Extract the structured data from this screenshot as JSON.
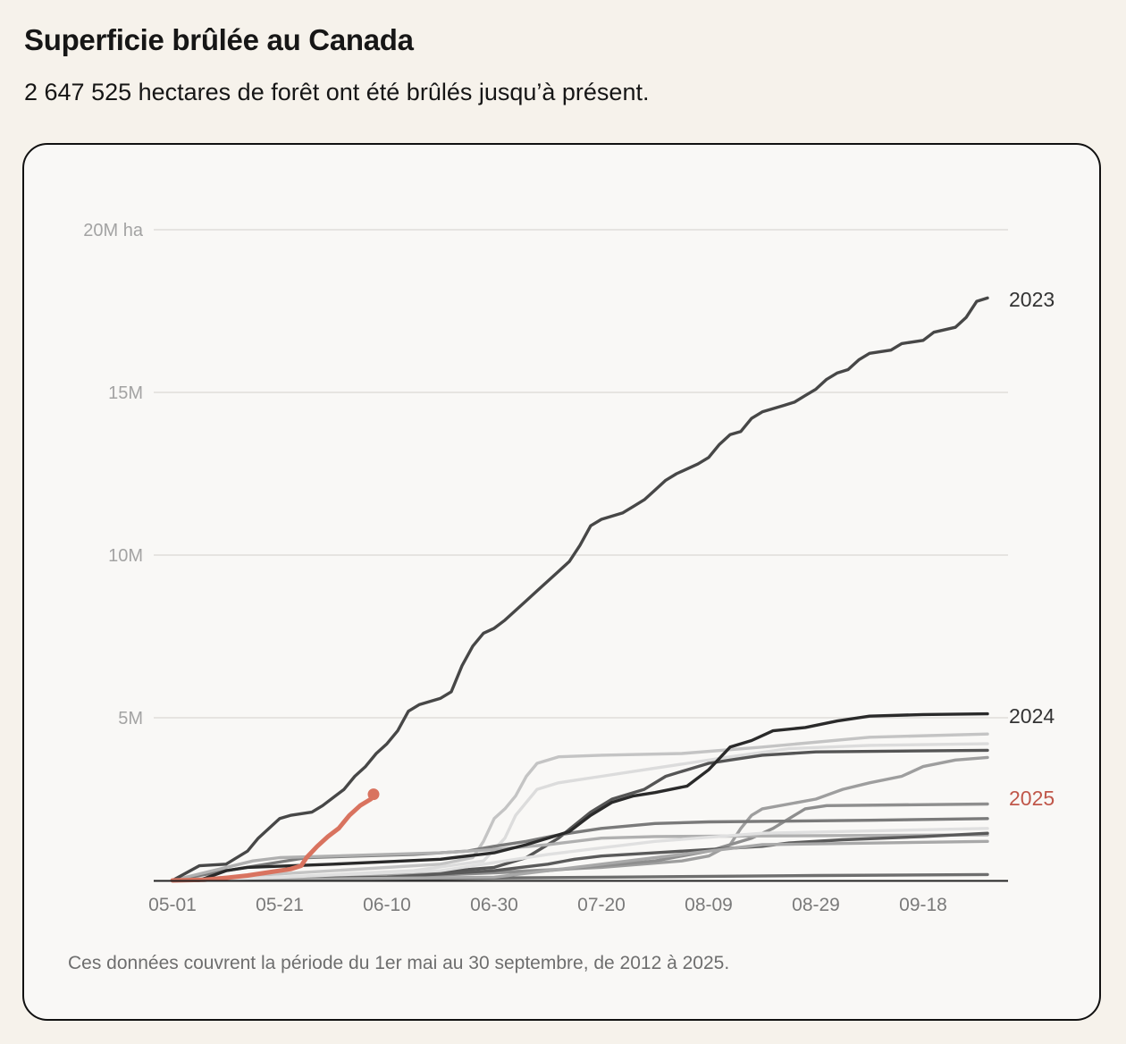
{
  "header": {
    "title": "Superficie brûlée au Canada",
    "subtitle": "2 647 525 hectares de forêt ont été brûlés jusqu’à présent."
  },
  "footer": {
    "note": "Ces données couvrent la période du 1er mai au 30 septembre, de 2012 à 2025."
  },
  "colors": {
    "background": "#f6f2eb",
    "card": "#f9f8f6",
    "highlight_2025": "#d9735f",
    "label_2025": "#c0574a",
    "label_dark": "#333333",
    "grid": "#e6e4e1",
    "axis": "#222222"
  },
  "chart_data": {
    "type": "line",
    "title": "Superficie brûlée au Canada",
    "xlabel": "",
    "ylabel": "ha",
    "x_unit": "days since May 1",
    "x_range": [
      0,
      152
    ],
    "ylim": [
      0,
      20
    ],
    "y_unit": "millions of hectares",
    "grid": true,
    "y_ticks": [
      {
        "value": 5,
        "label": "5M"
      },
      {
        "value": 10,
        "label": "10M"
      },
      {
        "value": 15,
        "label": "15M"
      },
      {
        "value": 20,
        "label": "20M ha"
      }
    ],
    "x_ticks": [
      {
        "value": 0,
        "label": "05-01"
      },
      {
        "value": 20,
        "label": "05-21"
      },
      {
        "value": 40,
        "label": "06-10"
      },
      {
        "value": 60,
        "label": "06-30"
      },
      {
        "value": 80,
        "label": "07-20"
      },
      {
        "value": 100,
        "label": "08-09"
      },
      {
        "value": 120,
        "label": "08-29"
      },
      {
        "value": 140,
        "label": "09-18"
      }
    ],
    "series": [
      {
        "name": "gray-a",
        "color": "#c4c4c4",
        "labeled": false,
        "points": [
          [
            0,
            0
          ],
          [
            10,
            0.1
          ],
          [
            30,
            0.3
          ],
          [
            50,
            0.5
          ],
          [
            56,
            0.7
          ],
          [
            58,
            1.2
          ],
          [
            60,
            1.9
          ],
          [
            62,
            2.2
          ],
          [
            64,
            2.6
          ],
          [
            66,
            3.2
          ],
          [
            68,
            3.6
          ],
          [
            72,
            3.8
          ],
          [
            80,
            3.85
          ],
          [
            95,
            3.9
          ],
          [
            110,
            4.1
          ],
          [
            130,
            4.4
          ],
          [
            152,
            4.5
          ]
        ]
      },
      {
        "name": "gray-b",
        "color": "#dcdcdc",
        "labeled": false,
        "points": [
          [
            0,
            0
          ],
          [
            20,
            0.1
          ],
          [
            45,
            0.3
          ],
          [
            58,
            0.6
          ],
          [
            62,
            1.3
          ],
          [
            64,
            2.0
          ],
          [
            66,
            2.4
          ],
          [
            68,
            2.8
          ],
          [
            72,
            3.0
          ],
          [
            80,
            3.2
          ],
          [
            88,
            3.4
          ],
          [
            96,
            3.6
          ],
          [
            104,
            3.8
          ],
          [
            115,
            4.05
          ],
          [
            130,
            4.15
          ],
          [
            152,
            4.2
          ]
        ]
      },
      {
        "name": "gray-c",
        "color": "#555555",
        "labeled": false,
        "points": [
          [
            0,
            0
          ],
          [
            25,
            0.1
          ],
          [
            45,
            0.2
          ],
          [
            60,
            0.4
          ],
          [
            66,
            0.7
          ],
          [
            72,
            1.3
          ],
          [
            78,
            2.1
          ],
          [
            82,
            2.5
          ],
          [
            88,
            2.8
          ],
          [
            92,
            3.2
          ],
          [
            96,
            3.4
          ],
          [
            100,
            3.6
          ],
          [
            104,
            3.7
          ],
          [
            110,
            3.85
          ],
          [
            120,
            3.95
          ],
          [
            152,
            4.0
          ]
        ]
      },
      {
        "name": "gray-d",
        "color": "#9e9e9e",
        "labeled": false,
        "points": [
          [
            0,
            0
          ],
          [
            30,
            0.1
          ],
          [
            60,
            0.25
          ],
          [
            80,
            0.4
          ],
          [
            95,
            0.6
          ],
          [
            100,
            0.75
          ],
          [
            104,
            1.1
          ],
          [
            106,
            1.6
          ],
          [
            108,
            2.0
          ],
          [
            110,
            2.2
          ],
          [
            120,
            2.5
          ],
          [
            125,
            2.8
          ],
          [
            130,
            3.0
          ],
          [
            136,
            3.2
          ],
          [
            140,
            3.5
          ],
          [
            146,
            3.7
          ],
          [
            152,
            3.78
          ]
        ]
      },
      {
        "name": "gray-e",
        "color": "#8e8e8e",
        "labeled": false,
        "points": [
          [
            0,
            0
          ],
          [
            40,
            0.1
          ],
          [
            70,
            0.3
          ],
          [
            90,
            0.6
          ],
          [
            100,
            0.9
          ],
          [
            108,
            1.3
          ],
          [
            112,
            1.6
          ],
          [
            116,
            2.0
          ],
          [
            118,
            2.2
          ],
          [
            122,
            2.3
          ],
          [
            152,
            2.35
          ]
        ]
      },
      {
        "name": "gray-f",
        "color": "#7a7a7a",
        "labeled": false,
        "points": [
          [
            0,
            0
          ],
          [
            10,
            0.3
          ],
          [
            25,
            0.7
          ],
          [
            45,
            0.8
          ],
          [
            55,
            0.9
          ],
          [
            60,
            1.05
          ],
          [
            66,
            1.2
          ],
          [
            72,
            1.4
          ],
          [
            80,
            1.6
          ],
          [
            90,
            1.75
          ],
          [
            100,
            1.8
          ],
          [
            130,
            1.85
          ],
          [
            152,
            1.9
          ]
        ]
      },
      {
        "name": "gray-g",
        "color": "#b0b0b0",
        "labeled": false,
        "points": [
          [
            0,
            0
          ],
          [
            15,
            0.6
          ],
          [
            20,
            0.7
          ],
          [
            30,
            0.75
          ],
          [
            50,
            0.85
          ],
          [
            60,
            0.95
          ],
          [
            70,
            1.1
          ],
          [
            80,
            1.3
          ],
          [
            90,
            1.35
          ],
          [
            152,
            1.4
          ]
        ]
      },
      {
        "name": "gray-h",
        "color": "#5a5a5a",
        "labeled": false,
        "points": [
          [
            0,
            0
          ],
          [
            40,
            0.1
          ],
          [
            60,
            0.3
          ],
          [
            70,
            0.5
          ],
          [
            75,
            0.65
          ],
          [
            80,
            0.75
          ],
          [
            90,
            0.85
          ],
          [
            100,
            0.95
          ],
          [
            110,
            1.05
          ],
          [
            115,
            1.15
          ],
          [
            125,
            1.25
          ],
          [
            140,
            1.35
          ],
          [
            152,
            1.45
          ]
        ]
      },
      {
        "name": "gray-i",
        "color": "#6e6e6e",
        "labeled": false,
        "points": [
          [
            0,
            0
          ],
          [
            40,
            0.05
          ],
          [
            80,
            0.1
          ],
          [
            120,
            0.15
          ],
          [
            152,
            0.18
          ]
        ]
      },
      {
        "name": "gray-j",
        "color": "#a8a8a8",
        "labeled": false,
        "points": [
          [
            0,
            0
          ],
          [
            30,
            0.05
          ],
          [
            60,
            0.1
          ],
          [
            80,
            0.5
          ],
          [
            100,
            0.9
          ],
          [
            110,
            1.1
          ],
          [
            152,
            1.2
          ]
        ]
      },
      {
        "name": "gray-k",
        "color": "#e0e0e0",
        "labeled": false,
        "points": [
          [
            0,
            0
          ],
          [
            20,
            0.1
          ],
          [
            50,
            0.3
          ],
          [
            70,
            0.8
          ],
          [
            90,
            1.2
          ],
          [
            110,
            1.45
          ],
          [
            152,
            1.6
          ]
        ]
      },
      {
        "name": "2024",
        "color": "#2a2a2a",
        "labeled": true,
        "label_color": "#333333",
        "points": [
          [
            0,
            0
          ],
          [
            5,
            0.0
          ],
          [
            10,
            0.3
          ],
          [
            14,
            0.4
          ],
          [
            30,
            0.5
          ],
          [
            50,
            0.65
          ],
          [
            60,
            0.85
          ],
          [
            66,
            1.1
          ],
          [
            70,
            1.3
          ],
          [
            74,
            1.5
          ],
          [
            78,
            2.0
          ],
          [
            82,
            2.4
          ],
          [
            86,
            2.6
          ],
          [
            90,
            2.7
          ],
          [
            96,
            2.9
          ],
          [
            100,
            3.4
          ],
          [
            104,
            4.1
          ],
          [
            108,
            4.3
          ],
          [
            112,
            4.6
          ],
          [
            118,
            4.7
          ],
          [
            124,
            4.9
          ],
          [
            130,
            5.05
          ],
          [
            140,
            5.1
          ],
          [
            152,
            5.12
          ]
        ]
      },
      {
        "name": "2023",
        "color": "#474747",
        "labeled": true,
        "label_color": "#333333",
        "points": [
          [
            0,
            0
          ],
          [
            5,
            0.45
          ],
          [
            10,
            0.5
          ],
          [
            14,
            0.9
          ],
          [
            16,
            1.3
          ],
          [
            18,
            1.6
          ],
          [
            20,
            1.9
          ],
          [
            22,
            2.0
          ],
          [
            26,
            2.1
          ],
          [
            28,
            2.3
          ],
          [
            32,
            2.8
          ],
          [
            34,
            3.2
          ],
          [
            36,
            3.5
          ],
          [
            38,
            3.9
          ],
          [
            40,
            4.2
          ],
          [
            42,
            4.6
          ],
          [
            44,
            5.2
          ],
          [
            46,
            5.4
          ],
          [
            50,
            5.6
          ],
          [
            52,
            5.8
          ],
          [
            54,
            6.6
          ],
          [
            56,
            7.2
          ],
          [
            58,
            7.6
          ],
          [
            60,
            7.75
          ],
          [
            62,
            8.0
          ],
          [
            64,
            8.3
          ],
          [
            66,
            8.6
          ],
          [
            68,
            8.9
          ],
          [
            70,
            9.2
          ],
          [
            72,
            9.5
          ],
          [
            74,
            9.8
          ],
          [
            76,
            10.3
          ],
          [
            78,
            10.9
          ],
          [
            80,
            11.1
          ],
          [
            84,
            11.3
          ],
          [
            86,
            11.5
          ],
          [
            88,
            11.7
          ],
          [
            90,
            12.0
          ],
          [
            92,
            12.3
          ],
          [
            94,
            12.5
          ],
          [
            98,
            12.8
          ],
          [
            100,
            13.0
          ],
          [
            102,
            13.4
          ],
          [
            104,
            13.7
          ],
          [
            106,
            13.8
          ],
          [
            108,
            14.2
          ],
          [
            110,
            14.4
          ],
          [
            114,
            14.6
          ],
          [
            116,
            14.7
          ],
          [
            118,
            14.9
          ],
          [
            120,
            15.1
          ],
          [
            122,
            15.4
          ],
          [
            124,
            15.6
          ],
          [
            126,
            15.7
          ],
          [
            128,
            16.0
          ],
          [
            130,
            16.2
          ],
          [
            134,
            16.3
          ],
          [
            136,
            16.5
          ],
          [
            140,
            16.6
          ],
          [
            142,
            16.85
          ],
          [
            146,
            17.0
          ],
          [
            148,
            17.3
          ],
          [
            150,
            17.8
          ],
          [
            152,
            17.9
          ]
        ]
      },
      {
        "name": "2025",
        "color": "#d9735f",
        "labeled": true,
        "label_color": "#c0574a",
        "current": true,
        "points": [
          [
            0,
            0
          ],
          [
            6,
            0.02
          ],
          [
            10,
            0.08
          ],
          [
            14,
            0.15
          ],
          [
            18,
            0.25
          ],
          [
            22,
            0.35
          ],
          [
            24,
            0.45
          ],
          [
            25,
            0.7
          ],
          [
            27,
            1.05
          ],
          [
            29,
            1.35
          ],
          [
            31,
            1.6
          ],
          [
            33,
            2.0
          ],
          [
            35,
            2.3
          ],
          [
            37,
            2.5
          ],
          [
            37.5,
            2.6475
          ]
        ]
      }
    ]
  }
}
